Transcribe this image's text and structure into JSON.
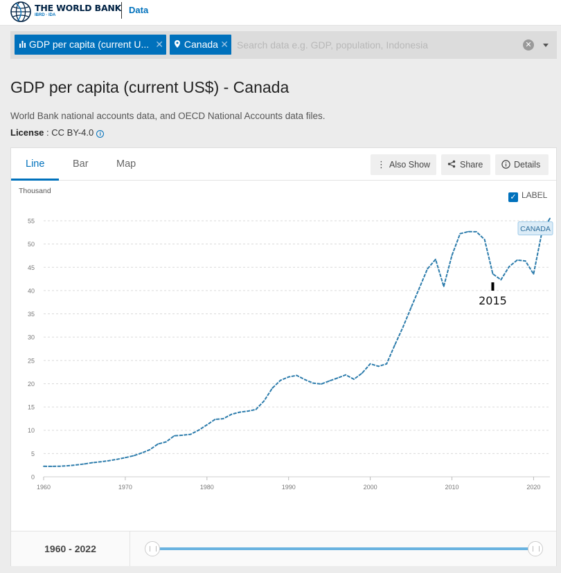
{
  "header": {
    "brand_name": "THE WORLD BANK",
    "brand_sub": "IBRD · IDA",
    "data_link": "Data"
  },
  "search": {
    "chips": [
      {
        "label": "GDP per capita (current U...",
        "icon": "bar-chart-icon"
      },
      {
        "label": "Canada",
        "icon": "map-pin-icon"
      }
    ],
    "placeholder": "Search data e.g. GDP, population, Indonesia"
  },
  "page": {
    "title": "GDP per capita (current US$) - Canada",
    "source": "World Bank national accounts data, and OECD National Accounts data files.",
    "license_label": "License",
    "license_value": "CC BY-4.0"
  },
  "tabs": [
    {
      "label": "Line",
      "active": true
    },
    {
      "label": "Bar",
      "active": false
    },
    {
      "label": "Map",
      "active": false
    }
  ],
  "toolbar": {
    "also_show": "Also Show",
    "share": "Share",
    "details": "Details"
  },
  "label_toggle": {
    "label": "LABEL",
    "checked": true
  },
  "range": {
    "label": "1960 - 2022"
  },
  "colors": {
    "accent": "#0071bc",
    "line": "#2b7bab"
  },
  "chart_data": {
    "type": "line",
    "ylabel": "Thousand",
    "ylim": [
      0,
      55
    ],
    "yticks": [
      0,
      5,
      10,
      15,
      20,
      25,
      30,
      35,
      40,
      45,
      50,
      55
    ],
    "xlim": [
      1960,
      2022
    ],
    "xticks": [
      1960,
      1970,
      1980,
      1990,
      2000,
      2010,
      2020
    ],
    "grid": true,
    "series": [
      {
        "name": "CANADA",
        "x": [
          1960,
          1961,
          1962,
          1963,
          1964,
          1965,
          1966,
          1967,
          1968,
          1969,
          1970,
          1971,
          1972,
          1973,
          1974,
          1975,
          1976,
          1977,
          1978,
          1979,
          1980,
          1981,
          1982,
          1983,
          1984,
          1985,
          1986,
          1987,
          1988,
          1989,
          1990,
          1991,
          1992,
          1993,
          1994,
          1995,
          1996,
          1997,
          1998,
          1999,
          2000,
          2001,
          2002,
          2003,
          2004,
          2005,
          2006,
          2007,
          2008,
          2009,
          2010,
          2011,
          2012,
          2013,
          2014,
          2015,
          2016,
          2017,
          2018,
          2019,
          2020,
          2021,
          2022
        ],
        "values": [
          2.26,
          2.24,
          2.27,
          2.38,
          2.56,
          2.77,
          3.05,
          3.22,
          3.46,
          3.76,
          4.12,
          4.52,
          5.12,
          5.83,
          7.05,
          7.51,
          8.81,
          8.94,
          9.12,
          10.04,
          11.17,
          12.34,
          12.48,
          13.43,
          13.88,
          14.11,
          14.46,
          16.31,
          19.03,
          20.72,
          21.45,
          21.77,
          20.87,
          20.12,
          19.94,
          20.61,
          21.23,
          21.9,
          20.96,
          22.27,
          24.27,
          23.74,
          24.26,
          28.3,
          32.14,
          36.38,
          40.5,
          44.66,
          46.71,
          40.88,
          47.56,
          52.22,
          52.67,
          52.64,
          50.96,
          43.6,
          42.32,
          45.13,
          46.55,
          46.37,
          43.56,
          52.36,
          55.52
        ]
      }
    ],
    "annotations": [
      {
        "x": 2015,
        "text": "2015"
      }
    ]
  }
}
